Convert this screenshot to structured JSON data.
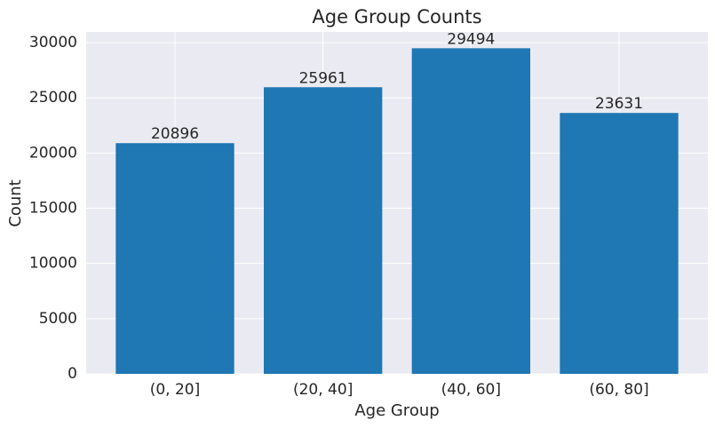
{
  "chart_data": {
    "type": "bar",
    "title": "Age Group Counts",
    "x_label": "Age Group",
    "y_label": "Count",
    "categories": [
      "(0, 20]",
      "(20, 40]",
      "(40, 60]",
      "(60, 80]"
    ],
    "values": [
      20896,
      25961,
      29494,
      23631
    ],
    "color": "#1f77b4",
    "ylim": [
      0,
      30969
    ],
    "yticks": [
      0,
      5000,
      10000,
      15000,
      20000,
      25000,
      30000
    ],
    "grid": true
  }
}
